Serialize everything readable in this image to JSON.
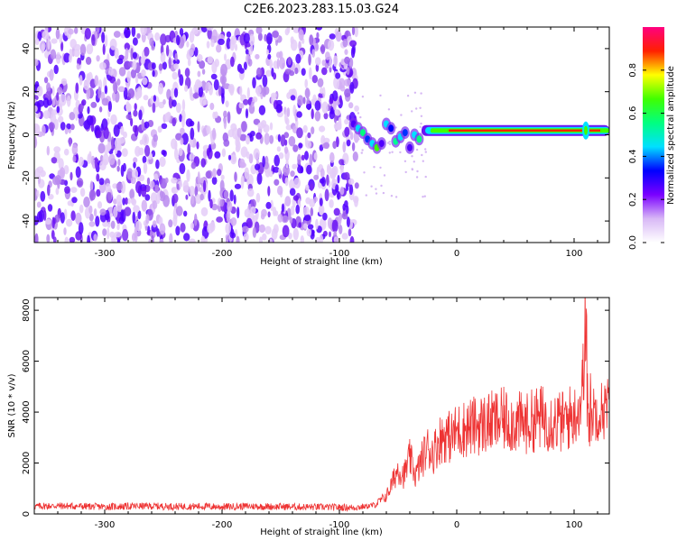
{
  "title": "C2E6.2023.283.15.03.G24",
  "chart_data": [
    {
      "type": "heatmap",
      "xlabel": "Height of straight line (km)",
      "ylabel": "Frequency (Hz)",
      "xlim": [
        -360,
        130
      ],
      "ylim": [
        -50,
        50
      ],
      "xticks": [
        -300,
        -200,
        -100,
        0,
        100
      ],
      "yticks": [
        -40,
        -20,
        0,
        20,
        40
      ],
      "grid": false,
      "colorbar": {
        "label": "Normalized spectral amplitude",
        "range": [
          0.0,
          1.0
        ],
        "ticks": [
          "0.0",
          "0.2",
          "0.4",
          "0.6",
          "0.8"
        ],
        "colors": [
          "#ffffff",
          "#d8b8f6",
          "#7a00ff",
          "#0000ff",
          "#00e0ff",
          "#00ff80",
          "#40ff00",
          "#ffff00",
          "#ff2000",
          "#ff0080"
        ]
      },
      "features": {
        "noise_region_x": [
          -360,
          -85
        ],
        "signal_band_frequency_hz": 2,
        "signal_band_x": [
          -30,
          130
        ],
        "transition_x": [
          -90,
          -30
        ]
      }
    },
    {
      "type": "line",
      "xlabel": "Height of straight line (km)",
      "ylabel": "SNR (10 * v/v)",
      "xlim": [
        -360,
        130
      ],
      "ylim": [
        0,
        8500
      ],
      "xticks": [
        -300,
        -200,
        -100,
        0,
        100
      ],
      "yticks": [
        0,
        2000,
        4000,
        6000,
        8000
      ],
      "grid": false,
      "series": [
        {
          "color": "#ee3333",
          "x": [
            -360,
            -340,
            -320,
            -300,
            -280,
            -260,
            -240,
            -220,
            -200,
            -180,
            -160,
            -140,
            -120,
            -100,
            -90,
            -80,
            -70,
            -60,
            -55,
            -50,
            -45,
            -40,
            -35,
            -30,
            -25,
            -20,
            -15,
            -10,
            -5,
            0,
            10,
            20,
            30,
            40,
            50,
            60,
            70,
            80,
            90,
            100,
            105,
            108,
            110,
            112,
            115,
            120,
            125,
            130
          ],
          "values": [
            300,
            320,
            300,
            280,
            300,
            310,
            290,
            300,
            280,
            300,
            290,
            280,
            270,
            260,
            250,
            280,
            350,
            700,
            1200,
            1800,
            1500,
            2200,
            1500,
            2100,
            2600,
            2400,
            2900,
            3100,
            3000,
            3250,
            3400,
            3500,
            3600,
            3700,
            3600,
            3550,
            3800,
            3700,
            3600,
            3900,
            4200,
            5500,
            7800,
            3600,
            4000,
            4050,
            4100,
            4200
          ]
        }
      ]
    }
  ]
}
